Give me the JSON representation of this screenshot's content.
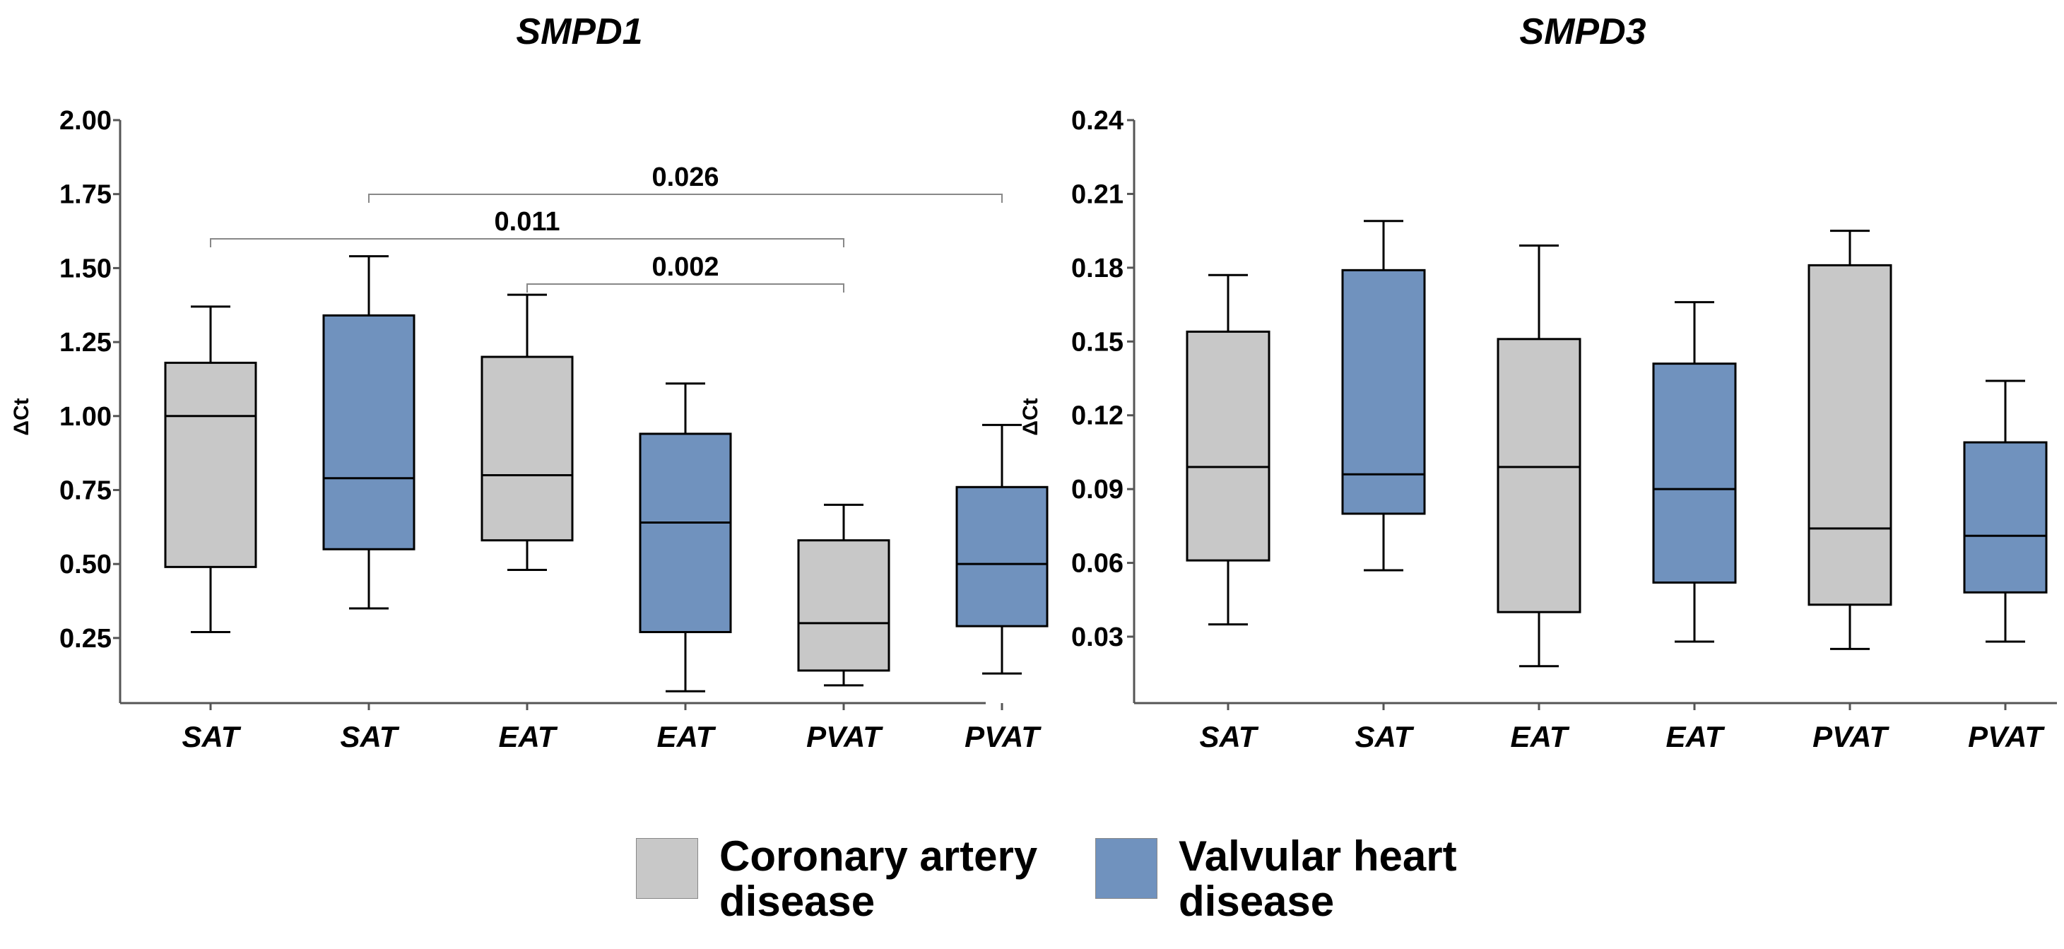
{
  "colors": {
    "cad": "#c8c8c8",
    "vhd": "#7092be",
    "axis": "#555555",
    "line": "#000000",
    "bracket": "#888888"
  },
  "legend": [
    {
      "key": "cad",
      "label_line1": "Coronary artery",
      "label_line2": "disease"
    },
    {
      "key": "vhd",
      "label_line1": "Valvular heart",
      "label_line2": "disease"
    }
  ],
  "chart_data": [
    {
      "type": "box",
      "title": "SMPD1",
      "ylabel": "ΔCt",
      "xlabel": "",
      "ylim": [
        0.03,
        2.0
      ],
      "yticks": [
        0.25,
        0.5,
        0.75,
        1.0,
        1.25,
        1.5,
        1.75,
        2.0
      ],
      "ytick_labels": [
        "0.25",
        "0.50",
        "0.75",
        "1.00",
        "1.25",
        "1.50",
        "1.75",
        "2.00"
      ],
      "categories": [
        "SAT",
        "SAT",
        "EAT",
        "EAT",
        "PVAT",
        "PVAT"
      ],
      "groups": [
        "cad",
        "vhd",
        "cad",
        "vhd",
        "cad",
        "vhd"
      ],
      "boxes": [
        {
          "min": 0.27,
          "q1": 0.49,
          "median": 1.0,
          "q3": 1.18,
          "max": 1.37
        },
        {
          "min": 0.35,
          "q1": 0.55,
          "median": 0.79,
          "q3": 1.34,
          "max": 1.54
        },
        {
          "min": 0.48,
          "q1": 0.58,
          "median": 0.8,
          "q3": 1.2,
          "max": 1.41
        },
        {
          "min": 0.07,
          "q1": 0.27,
          "median": 0.64,
          "q3": 0.94,
          "max": 1.11
        },
        {
          "min": 0.09,
          "q1": 0.14,
          "median": 0.3,
          "q3": 0.58,
          "max": 0.7
        },
        {
          "min": 0.13,
          "q1": 0.29,
          "median": 0.5,
          "q3": 0.76,
          "max": 0.97
        }
      ],
      "comparisons": [
        {
          "from": 1,
          "to": 5,
          "label": "0.026"
        },
        {
          "from": 0,
          "to": 4,
          "label": "0.011"
        },
        {
          "from": 2,
          "to": 4,
          "label": "0.002"
        }
      ]
    },
    {
      "type": "box",
      "title": "SMPD3",
      "ylabel": "ΔCt",
      "xlabel": "",
      "ylim": [
        0.003,
        0.24
      ],
      "yticks": [
        0.03,
        0.06,
        0.09,
        0.12,
        0.15,
        0.18,
        0.21,
        0.24
      ],
      "ytick_labels": [
        "0.03",
        "0.06",
        "0.09",
        "0.12",
        "0.15",
        "0.18",
        "0.21",
        "0.24"
      ],
      "categories": [
        "SAT",
        "SAT",
        "EAT",
        "EAT",
        "PVAT",
        "PVAT"
      ],
      "groups": [
        "cad",
        "vhd",
        "cad",
        "vhd",
        "cad",
        "vhd"
      ],
      "boxes": [
        {
          "min": 0.035,
          "q1": 0.061,
          "median": 0.099,
          "q3": 0.154,
          "max": 0.177
        },
        {
          "min": 0.057,
          "q1": 0.08,
          "median": 0.096,
          "q3": 0.179,
          "max": 0.199
        },
        {
          "min": 0.018,
          "q1": 0.04,
          "median": 0.099,
          "q3": 0.151,
          "max": 0.189
        },
        {
          "min": 0.028,
          "q1": 0.052,
          "median": 0.09,
          "q3": 0.141,
          "max": 0.166
        },
        {
          "min": 0.025,
          "q1": 0.043,
          "median": 0.074,
          "q3": 0.181,
          "max": 0.195
        },
        {
          "min": 0.028,
          "q1": 0.048,
          "median": 0.071,
          "q3": 0.109,
          "max": 0.134
        }
      ],
      "comparisons": []
    }
  ]
}
